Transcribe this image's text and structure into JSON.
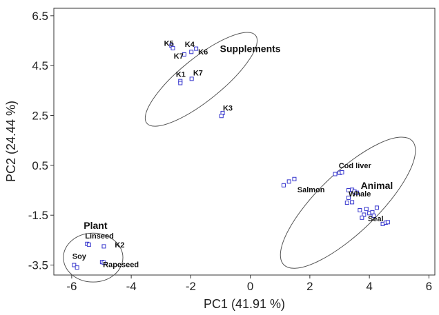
{
  "chart_data": {
    "type": "scatter",
    "title": "",
    "xlabel": "PC1 (41.91 %)",
    "ylabel": "PC2 (24.44 %)",
    "xlim": [
      -6.6,
      6.2
    ],
    "ylim": [
      -3.9,
      6.8
    ],
    "x_ticks": [
      -6,
      -4,
      -2,
      0,
      2,
      4,
      6
    ],
    "y_ticks": [
      -3.5,
      -1.5,
      0.5,
      2.5,
      4.5,
      6.5
    ],
    "x_tick_labels": [
      "-6",
      "-4",
      "-2",
      "0",
      "2",
      "4",
      "6"
    ],
    "y_tick_labels": [
      "-3.5",
      "-1.5",
      "0.5",
      "2.5",
      "4.5",
      "6.5"
    ],
    "grid": false,
    "marker_color": "#3333cc",
    "ellipse_color": "#555555",
    "points": [
      {
        "x": -2.65,
        "y": 5.3
      },
      {
        "x": -2.6,
        "y": 5.2
      },
      {
        "x": -1.82,
        "y": 5.18
      },
      {
        "x": -1.98,
        "y": 5.05
      },
      {
        "x": -2.22,
        "y": 4.95
      },
      {
        "x": -2.35,
        "y": 3.88
      },
      {
        "x": -2.35,
        "y": 3.8
      },
      {
        "x": -1.97,
        "y": 3.97
      },
      {
        "x": -0.93,
        "y": 2.6
      },
      {
        "x": -0.97,
        "y": 2.48
      },
      {
        "x": 1.12,
        "y": -0.3
      },
      {
        "x": 1.3,
        "y": -0.15
      },
      {
        "x": 1.48,
        "y": -0.05
      },
      {
        "x": 2.85,
        "y": 0.15
      },
      {
        "x": 3.0,
        "y": 0.2
      },
      {
        "x": 3.08,
        "y": 0.22
      },
      {
        "x": 3.3,
        "y": -0.5
      },
      {
        "x": 3.42,
        "y": -0.48
      },
      {
        "x": 3.5,
        "y": -0.55
      },
      {
        "x": 3.58,
        "y": -0.6
      },
      {
        "x": 3.25,
        "y": -1.0
      },
      {
        "x": 3.42,
        "y": -0.98
      },
      {
        "x": 3.3,
        "y": -0.8
      },
      {
        "x": 3.68,
        "y": -1.3
      },
      {
        "x": 3.82,
        "y": -1.48
      },
      {
        "x": 3.9,
        "y": -1.25
      },
      {
        "x": 4.0,
        "y": -1.42
      },
      {
        "x": 4.1,
        "y": -1.38
      },
      {
        "x": 4.25,
        "y": -1.2
      },
      {
        "x": 3.75,
        "y": -1.6
      },
      {
        "x": 4.15,
        "y": -1.52
      },
      {
        "x": 4.45,
        "y": -1.85
      },
      {
        "x": 4.55,
        "y": -1.8
      },
      {
        "x": 4.62,
        "y": -1.78
      },
      {
        "x": -5.48,
        "y": -2.65
      },
      {
        "x": -5.42,
        "y": -2.68
      },
      {
        "x": -4.92,
        "y": -2.75
      },
      {
        "x": -5.92,
        "y": -3.5
      },
      {
        "x": -5.82,
        "y": -3.6
      },
      {
        "x": -4.98,
        "y": -3.38
      },
      {
        "x": -4.92,
        "y": -3.4
      }
    ],
    "point_labels": [
      {
        "text": "K5",
        "x": -2.9,
        "y": 5.3
      },
      {
        "text": "K4",
        "x": -2.2,
        "y": 5.25
      },
      {
        "text": "K6",
        "x": -1.75,
        "y": 4.95
      },
      {
        "text": "K7",
        "x": -2.57,
        "y": 4.78
      },
      {
        "text": "K1",
        "x": -2.5,
        "y": 4.05
      },
      {
        "text": "K7",
        "x": -1.92,
        "y": 4.1
      },
      {
        "text": "K3",
        "x": -0.92,
        "y": 2.7
      },
      {
        "text": "Salmon",
        "x": 1.58,
        "y": -0.58
      },
      {
        "text": "Cod liver",
        "x": 2.97,
        "y": 0.38
      },
      {
        "text": "Whale",
        "x": 3.3,
        "y": -0.75
      },
      {
        "text": "Seal",
        "x": 3.95,
        "y": -1.75
      },
      {
        "text": "Linseed",
        "x": -5.55,
        "y": -2.43
      },
      {
        "text": "K2",
        "x": -4.55,
        "y": -2.8
      },
      {
        "text": "Soy",
        "x": -5.98,
        "y": -3.25
      },
      {
        "text": "Rapeseed",
        "x": -4.95,
        "y": -3.58
      }
    ],
    "groups": [
      {
        "label": "Supplements",
        "label_x": 0.0,
        "label_y": 5.05,
        "cx": -1.65,
        "cy": 3.95,
        "rx": 2.35,
        "ry": 0.85,
        "angle_deg": 39
      },
      {
        "label": "Animal",
        "label_x": 4.25,
        "label_y": -0.45,
        "cx": 3.28,
        "cy": -1.0,
        "rx": 3.0,
        "ry": 1.2,
        "angle_deg": 44
      },
      {
        "label": "Plant",
        "label_x": -5.2,
        "label_y": -2.05,
        "cx": -5.28,
        "cy": -3.2,
        "rx": 1.0,
        "ry": 0.98,
        "angle_deg": 0
      }
    ]
  }
}
